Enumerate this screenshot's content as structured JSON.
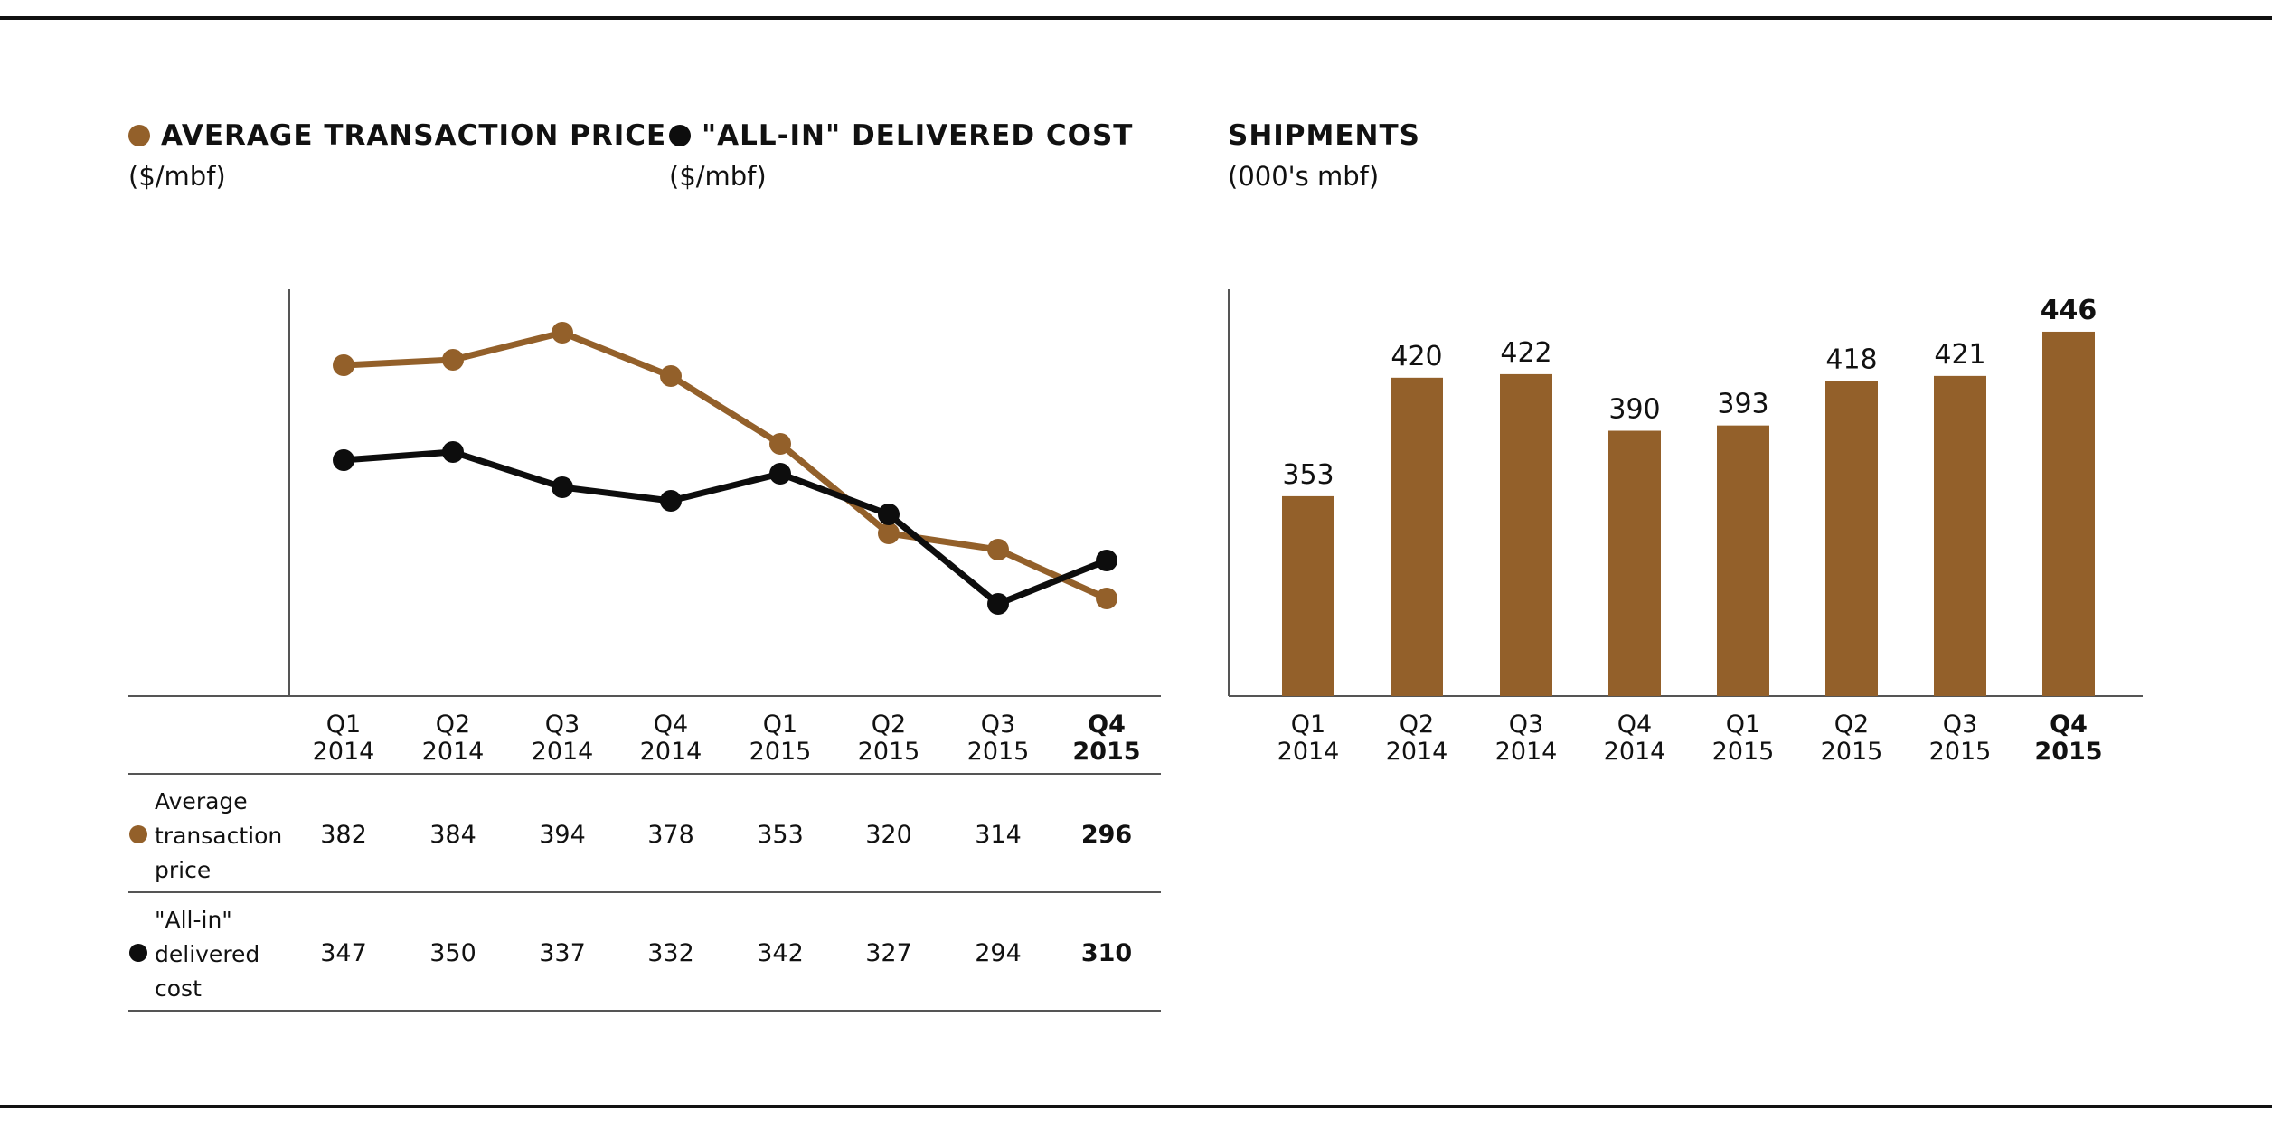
{
  "colors": {
    "price": "#93602a",
    "cost": "#0d0d0d",
    "bar": "#93602a",
    "axis": "#555555"
  },
  "legends": {
    "price": {
      "title": "AVERAGE TRANSACTION PRICE",
      "unit": "($/mbf)"
    },
    "cost": {
      "title": "\"ALL-IN\" DELIVERED COST",
      "unit": "($/mbf)"
    },
    "shipments": {
      "title": "SHIPMENTS",
      "unit": "(000's mbf)"
    }
  },
  "table": {
    "price_row_label": [
      "Average",
      "transaction",
      "price"
    ],
    "cost_row_label": [
      "\"All-in\"",
      "delivered",
      "cost"
    ]
  },
  "chart_data": [
    {
      "type": "line",
      "categories": [
        [
          "Q1",
          "2014"
        ],
        [
          "Q2",
          "2014"
        ],
        [
          "Q3",
          "2014"
        ],
        [
          "Q4",
          "2014"
        ],
        [
          "Q1",
          "2015"
        ],
        [
          "Q2",
          "2015"
        ],
        [
          "Q3",
          "2015"
        ],
        [
          "Q4",
          "2015"
        ]
      ],
      "highlight_last": true,
      "ylim": [
        260,
        410
      ],
      "series": [
        {
          "name": "AVERAGE TRANSACTION PRICE",
          "color": "#93602a",
          "values": [
            382,
            384,
            394,
            378,
            353,
            320,
            314,
            296
          ]
        },
        {
          "name": "\"ALL-IN\" DELIVERED COST",
          "color": "#0d0d0d",
          "values": [
            347,
            350,
            337,
            332,
            342,
            327,
            294,
            310
          ]
        }
      ],
      "grid": false
    },
    {
      "type": "bar",
      "categories": [
        [
          "Q1",
          "2014"
        ],
        [
          "Q2",
          "2014"
        ],
        [
          "Q3",
          "2014"
        ],
        [
          "Q4",
          "2014"
        ],
        [
          "Q1",
          "2015"
        ],
        [
          "Q2",
          "2015"
        ],
        [
          "Q3",
          "2015"
        ],
        [
          "Q4",
          "2015"
        ]
      ],
      "values": [
        353,
        420,
        422,
        390,
        393,
        418,
        421,
        446
      ],
      "highlight_last": true,
      "ylim": [
        240,
        470
      ],
      "grid": false
    }
  ]
}
